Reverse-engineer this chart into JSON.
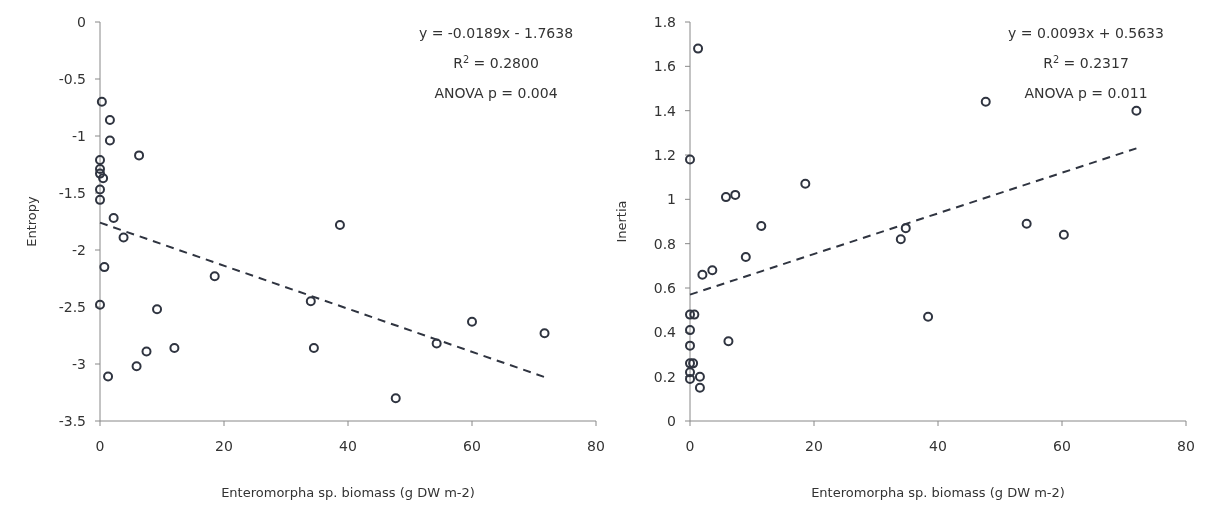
{
  "chart_data": [
    {
      "type": "scatter",
      "xlabel": "Enteromorpha sp. biomass (g DW m-2)",
      "ylabel": "Entropy",
      "xlim": [
        0,
        80
      ],
      "xticks": [
        0,
        20,
        40,
        60,
        80
      ],
      "ylim": [
        -3.5,
        0
      ],
      "yticks": [
        -3.5,
        -3,
        -2.5,
        -2,
        -1.5,
        -1,
        -0.5,
        0
      ],
      "marker": "circle",
      "grid": false,
      "annotations": [
        "y = -0.0189x - 1.7638",
        "R$^{2}$ = 0.2800",
        "ANOVA p = 0.004"
      ],
      "series": [
        {
          "color": "#2f3440",
          "x": [
            0.3,
            1.6,
            1.6,
            6.3,
            0,
            0,
            0,
            0.5,
            0,
            0,
            2.2,
            3.8,
            0.7,
            18.5,
            0,
            9.2,
            7.5,
            12,
            5.9,
            1.3,
            34,
            34.5,
            38.7,
            47.7,
            54.3,
            60,
            71.7
          ],
          "values": [
            -0.7,
            -0.86,
            -1.04,
            -1.17,
            -1.21,
            -1.29,
            -1.33,
            -1.37,
            -1.47,
            -1.56,
            -1.72,
            -1.89,
            -2.15,
            -2.23,
            -2.48,
            -2.52,
            -2.89,
            -2.86,
            -3.02,
            -3.11,
            -2.45,
            -2.86,
            -1.78,
            -3.3,
            -2.82,
            -2.63,
            -2.73
          ]
        },
        {
          "type": "line",
          "color": "#2f3440",
          "line_style": "dashed",
          "marker": "none",
          "x": [
            0,
            72
          ],
          "values": [
            -1.76,
            -3.12
          ]
        }
      ]
    },
    {
      "type": "scatter",
      "xlabel": "Enteromorpha sp. biomass (g DW m-2)",
      "ylabel": "Inertia",
      "xlim": [
        0,
        80
      ],
      "xticks": [
        0,
        20,
        40,
        60,
        80
      ],
      "ylim": [
        0,
        1.8
      ],
      "yticks": [
        0,
        0.2,
        0.4,
        0.6,
        0.8,
        1,
        1.2,
        1.4,
        1.6,
        1.8
      ],
      "marker": "circle",
      "grid": false,
      "annotations": [
        "y = 0.0093x + 0.5633",
        "R$^{2}$ = 0.2317",
        "ANOVA p = 0.011"
      ],
      "series": [
        {
          "color": "#2f3440",
          "x": [
            1.3,
            0,
            5.8,
            7.3,
            18.6,
            11.5,
            9,
            2,
            3.6,
            34,
            34.8,
            47.7,
            72,
            54.3,
            60.3,
            38.4,
            0,
            0.7,
            0,
            0,
            6.2,
            0,
            0.5,
            0,
            0,
            1.6,
            1.6
          ],
          "values": [
            1.68,
            1.18,
            1.01,
            1.02,
            1.07,
            0.88,
            0.74,
            0.66,
            0.68,
            0.82,
            0.87,
            1.44,
            1.4,
            0.89,
            0.84,
            0.47,
            0.48,
            0.48,
            0.41,
            0.34,
            0.36,
            0.26,
            0.26,
            0.22,
            0.19,
            0.2,
            0.15
          ]
        },
        {
          "type": "line",
          "color": "#2f3440",
          "line_style": "dashed",
          "marker": "none",
          "x": [
            0,
            72
          ],
          "values": [
            0.57,
            1.23
          ]
        }
      ]
    }
  ]
}
